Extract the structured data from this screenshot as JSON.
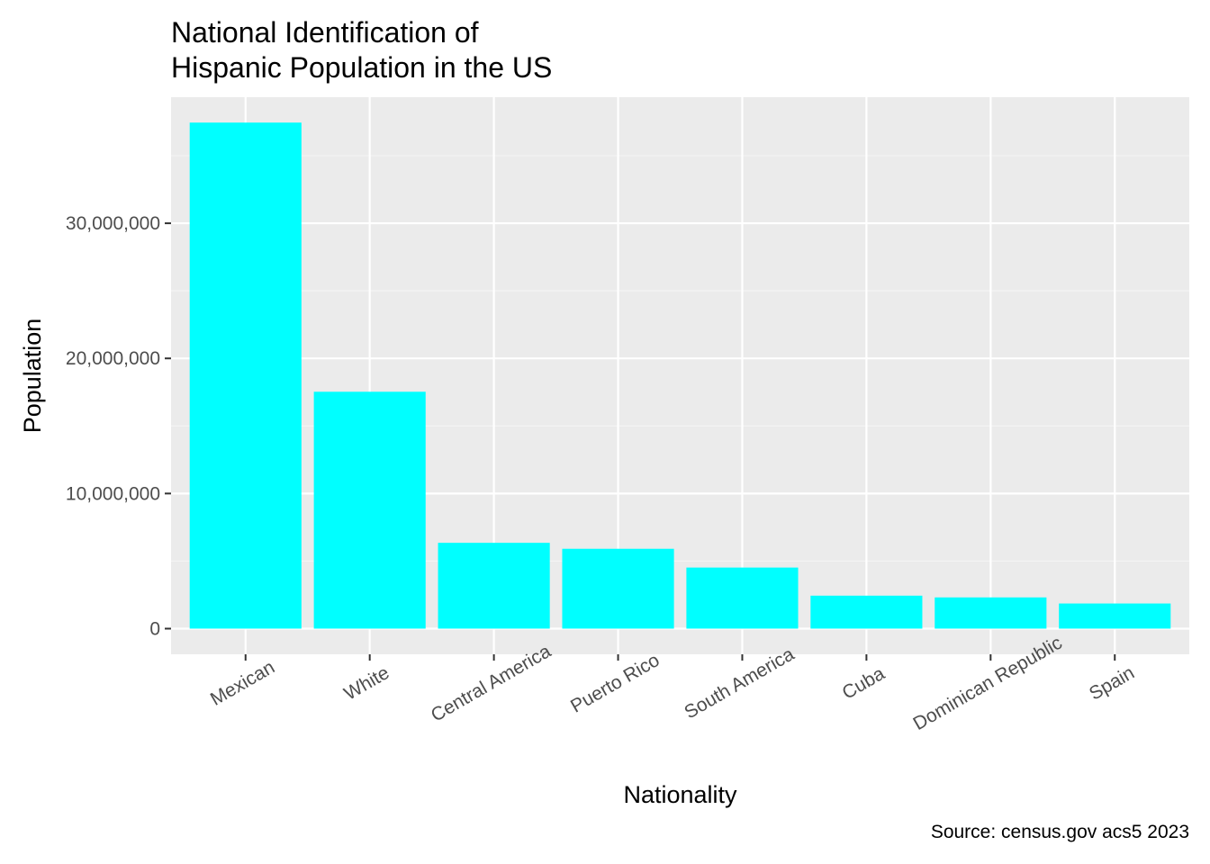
{
  "chart_data": {
    "type": "bar",
    "title": "National Identification of\nHispanic Population in the US",
    "xlabel": "Nationality",
    "ylabel": "Population",
    "caption": "Source: census.gov acs5 2023",
    "categories": [
      "Mexican",
      "White",
      "Central America",
      "Puerto Rico",
      "South America",
      "Cuba",
      "Dominican Republic",
      "Spain"
    ],
    "values": [
      37450000,
      17530000,
      6350000,
      5910000,
      4520000,
      2440000,
      2310000,
      1860000
    ],
    "ylim": [
      -1900000,
      39330000
    ],
    "y_ticks": [
      0,
      10000000,
      20000000,
      30000000
    ],
    "y_tick_labels": [
      "0",
      "10,000,000",
      "20,000,000",
      "30,000,000"
    ],
    "x_tick_rotation_deg": -30,
    "grid": true,
    "legend": "none",
    "colors": {
      "bar": "#00FFFF",
      "panel_background": "#EBEBEB",
      "grid_major": "#FFFFFF",
      "grid_minor": "#F4F4F4",
      "tick_text": "#4D4D4D",
      "tick_mark": "#333333"
    }
  }
}
